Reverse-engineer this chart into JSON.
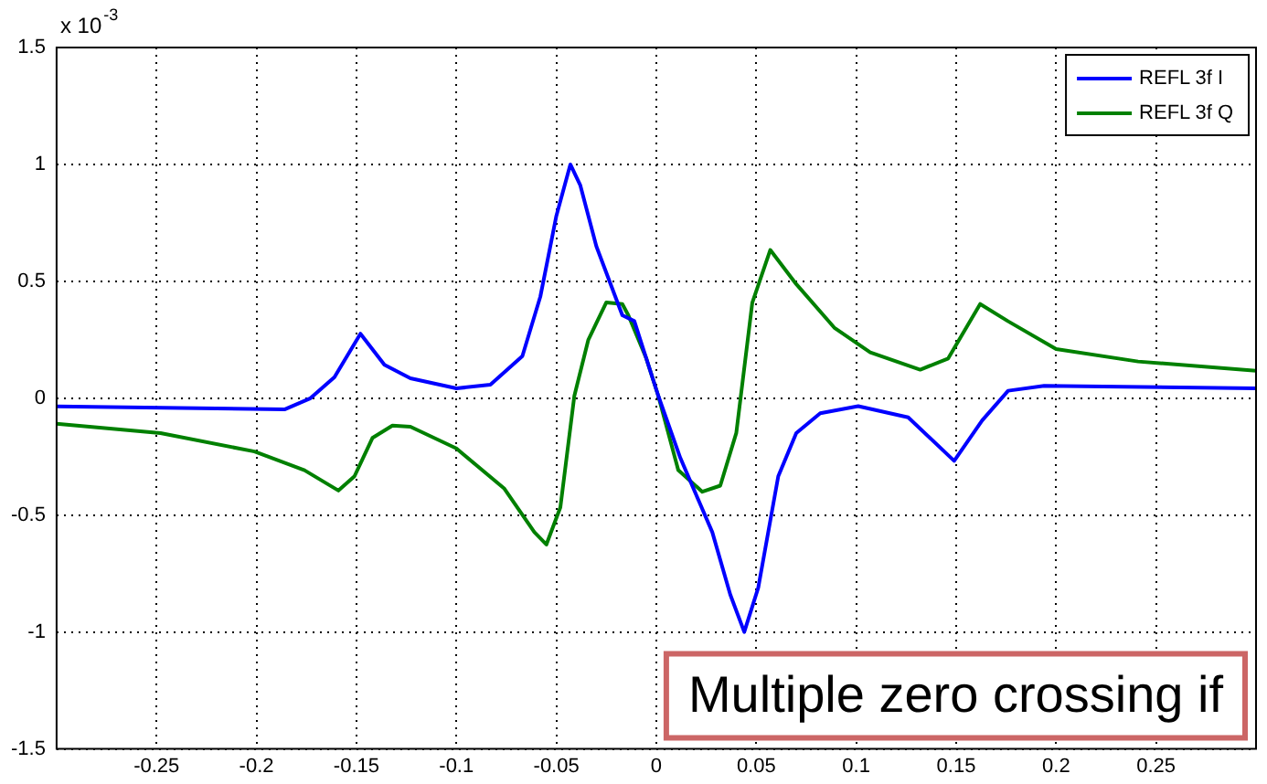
{
  "chart_data": {
    "type": "line",
    "xlim": [
      -0.3,
      0.3
    ],
    "xticks": [
      -0.25,
      -0.2,
      -0.15,
      -0.1,
      -0.05,
      0,
      0.05,
      0.1,
      0.15,
      0.2,
      0.25
    ],
    "ylim": [
      -1.5,
      1.5
    ],
    "yticks": [
      -1.5,
      -1,
      -0.5,
      0,
      0.5,
      1,
      1.5
    ],
    "grid": true,
    "legend": "top right",
    "marker": "none",
    "line_style": "solid",
    "annotations": [
      "x 10$^{-3}$",
      "Multiple zero crossing if"
    ],
    "series": [
      {
        "name": "REFL 3f I",
        "color": "#0000ff",
        "x": [
          -0.3,
          -0.186,
          -0.173,
          -0.161,
          -0.148,
          -0.136,
          -0.123,
          -0.1,
          -0.083,
          -0.067,
          -0.058,
          -0.05,
          -0.043,
          -0.038,
          -0.03,
          -0.017,
          -0.011,
          0.001,
          0.012,
          0.028,
          0.037,
          0.044,
          0.051,
          0.061,
          0.07,
          0.082,
          0.101,
          0.126,
          0.149,
          0.163,
          0.176,
          0.194,
          0.3
        ],
        "values": [
          -0.035,
          -0.048,
          0,
          0.09,
          0.276,
          0.143,
          0.085,
          0.042,
          0.058,
          0.18,
          0.435,
          0.78,
          1.0,
          0.91,
          0.65,
          0.355,
          0.33,
          0.01,
          -0.255,
          -0.573,
          -0.84,
          -1.0,
          -0.81,
          -0.334,
          -0.149,
          -0.064,
          -0.034,
          -0.082,
          -0.268,
          -0.095,
          0.032,
          0.053,
          0.042
        ]
      },
      {
        "name": "REFL 3f Q",
        "color": "#008000",
        "x": [
          -0.3,
          -0.248,
          -0.201,
          -0.176,
          -0.159,
          -0.151,
          -0.142,
          -0.132,
          -0.123,
          -0.1,
          -0.076,
          -0.061,
          -0.055,
          -0.048,
          -0.041,
          -0.034,
          -0.025,
          -0.017,
          -0.014,
          -0.005,
          0.001,
          0.011,
          0.023,
          0.032,
          0.04,
          0.048,
          0.057,
          0.07,
          0.089,
          0.107,
          0.132,
          0.146,
          0.162,
          0.176,
          0.2,
          0.241,
          0.3
        ],
        "values": [
          -0.109,
          -0.149,
          -0.228,
          -0.308,
          -0.395,
          -0.334,
          -0.17,
          -0.117,
          -0.122,
          -0.215,
          -0.387,
          -0.573,
          -0.626,
          -0.467,
          0.01,
          0.25,
          0.41,
          0.403,
          0.355,
          0.17,
          0.01,
          -0.308,
          -0.4,
          -0.374,
          -0.149,
          0.408,
          0.634,
          0.488,
          0.302,
          0.196,
          0.122,
          0.17,
          0.403,
          0.329,
          0.21,
          0.157,
          0.117
        ]
      }
    ]
  }
}
